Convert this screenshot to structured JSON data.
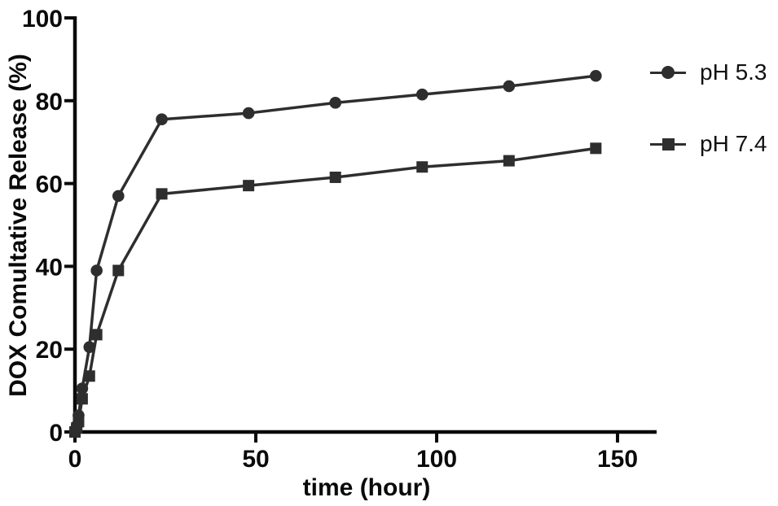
{
  "chart_data": {
    "type": "line",
    "title": "",
    "xlabel": "time (hour)",
    "ylabel": "DOX Comultative Release (%)",
    "xlim": [
      0,
      160
    ],
    "ylim": [
      0,
      100
    ],
    "x_ticks": [
      0,
      50,
      100,
      150
    ],
    "y_ticks": [
      0,
      20,
      40,
      60,
      80,
      100
    ],
    "grid": false,
    "legend_position": "right",
    "axis_color": "#0a0a0a",
    "series_color": "#2e2e2e",
    "x": [
      0,
      0.5,
      1,
      2,
      4,
      6,
      12,
      24,
      48,
      72,
      96,
      120,
      144
    ],
    "series": [
      {
        "name": "pH 5.3",
        "marker": "circle",
        "values": [
          0,
          1.5,
          4,
          10.5,
          20.5,
          39,
          57,
          75.5,
          77,
          79.5,
          81.5,
          83.5,
          86
        ]
      },
      {
        "name": "pH 7.4",
        "marker": "square",
        "values": [
          0,
          1,
          2.5,
          8,
          13.5,
          23.5,
          39,
          57.5,
          59.5,
          61.5,
          64,
          65.5,
          68.5
        ]
      }
    ]
  }
}
